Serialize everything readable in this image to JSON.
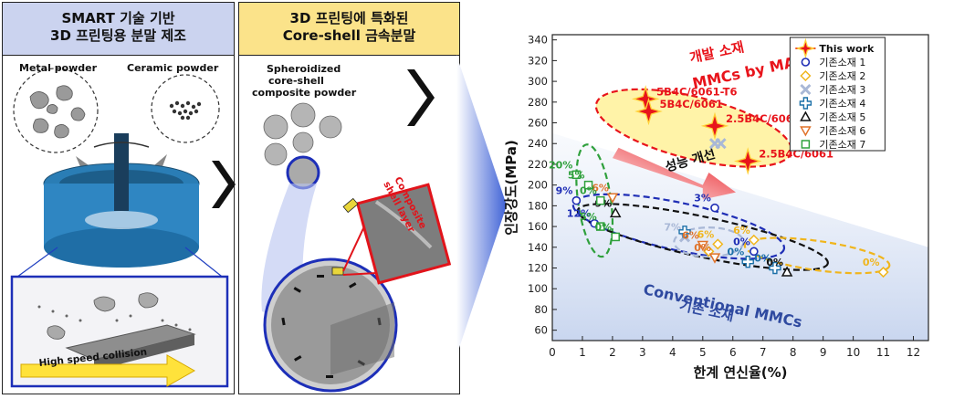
{
  "left_panel": {
    "title_line1": "SMART 기술 기반",
    "title_line2": "3D 프린팅용 분말 제조",
    "metal_label": "Metal powder",
    "ceramic_label": "Ceramic powder",
    "collision_label": "High speed collision"
  },
  "mid_panel": {
    "title_line1": "3D 프린팅에 특화된",
    "title_line2": "Core-shell 금속분말",
    "powder_label_1": "Spheroidized",
    "powder_label_2": "core-shell",
    "powder_label_3": "composite powder",
    "shell_label_1": "Composite",
    "shell_label_2": "shell layer"
  },
  "chart_data": {
    "type": "scatter",
    "xlabel": "한계 연신율(%)",
    "ylabel": "인장강도(MPa)",
    "xlim": [
      0,
      12.5
    ],
    "ylim": [
      50,
      345
    ],
    "xticks": [
      "0",
      "1",
      "2",
      "3",
      "4",
      "5",
      "6",
      "7",
      "8",
      "9",
      "10",
      "11",
      "12"
    ],
    "yticks": [
      "60",
      "80",
      "100",
      "120",
      "140",
      "160",
      "180",
      "200",
      "220",
      "240",
      "260",
      "280",
      "300",
      "320",
      "340"
    ],
    "annotations": {
      "new_material_1": "개발 소재",
      "new_material_2": "MMCs by MAM",
      "improvement": "성능 개선",
      "conventional_1": "Conventional MMCs",
      "conventional_2": "기존 소재"
    },
    "legend": [
      "This work",
      "기존소재 1",
      "기존소재 2",
      "기존소재 3",
      "기존소재 4",
      "기존소재 5",
      "기존소재 6",
      "기존소재 7"
    ],
    "this_work": [
      {
        "x": 3.1,
        "y": 283,
        "label": "5B4C/6061-T6"
      },
      {
        "x": 3.2,
        "y": 271,
        "label": "5B4C/6061"
      },
      {
        "x": 5.4,
        "y": 257,
        "label": "2.5B4C/6061-T6"
      },
      {
        "x": 6.5,
        "y": 223,
        "label": "2.5B4C/6061"
      }
    ],
    "series": [
      {
        "name": "기존소재 1",
        "points": [
          {
            "x": 0.8,
            "y": 185,
            "label": "9%"
          },
          {
            "x": 1.4,
            "y": 163,
            "label": "12%"
          },
          {
            "x": 5.4,
            "y": 178,
            "label": "3%"
          },
          {
            "x": 6.7,
            "y": 136,
            "label": "0%"
          }
        ]
      },
      {
        "name": "기존소재 2",
        "points": [
          {
            "x": 5.5,
            "y": 143,
            "label": "6%"
          },
          {
            "x": 5.2,
            "y": 136,
            "label": ""
          },
          {
            "x": 6.7,
            "y": 147,
            "label": "6%"
          },
          {
            "x": 11.0,
            "y": 116,
            "label": "0%"
          }
        ]
      },
      {
        "name": "기존소재 3",
        "points": [
          {
            "x": 4.4,
            "y": 150,
            "label": "7%"
          },
          {
            "x": 5.4,
            "y": 240,
            "label": ""
          },
          {
            "x": 5.6,
            "y": 240,
            "label": ""
          }
        ]
      },
      {
        "name": "기존소재 4",
        "points": [
          {
            "x": 4.4,
            "y": 155,
            "label": ""
          },
          {
            "x": 6.5,
            "y": 126,
            "label": "0%"
          },
          {
            "x": 7.4,
            "y": 120,
            "label": "0%"
          }
        ]
      },
      {
        "name": "기존소재 5",
        "points": [
          {
            "x": 2.1,
            "y": 173,
            "label": "9%"
          },
          {
            "x": 7.8,
            "y": 116,
            "label": "0%"
          }
        ]
      },
      {
        "name": "기존소재 6",
        "points": [
          {
            "x": 2.0,
            "y": 188,
            "label": "6%"
          },
          {
            "x": 5.0,
            "y": 142,
            "label": "6%"
          },
          {
            "x": 5.4,
            "y": 130,
            "label": "0%"
          }
        ]
      },
      {
        "name": "기존소재 7",
        "points": [
          {
            "x": 0.8,
            "y": 210,
            "label": "20%"
          },
          {
            "x": 1.2,
            "y": 200,
            "label": "5%"
          },
          {
            "x": 1.6,
            "y": 185,
            "label": "0%"
          },
          {
            "x": 1.6,
            "y": 160,
            "label": "5%"
          },
          {
            "x": 2.1,
            "y": 150,
            "label": "0%"
          }
        ]
      }
    ],
    "colors": {
      "this_work": "#e8141b",
      "s1": "#1f2eb5",
      "s2": "#f0b51c",
      "s3": "#a9b8d6",
      "s4": "#1c70a8",
      "s5": "#111111",
      "s6": "#e0722a",
      "s7": "#2fa03c",
      "conventional_text": "#2f4aa0",
      "new_text": "#e8141b"
    }
  }
}
